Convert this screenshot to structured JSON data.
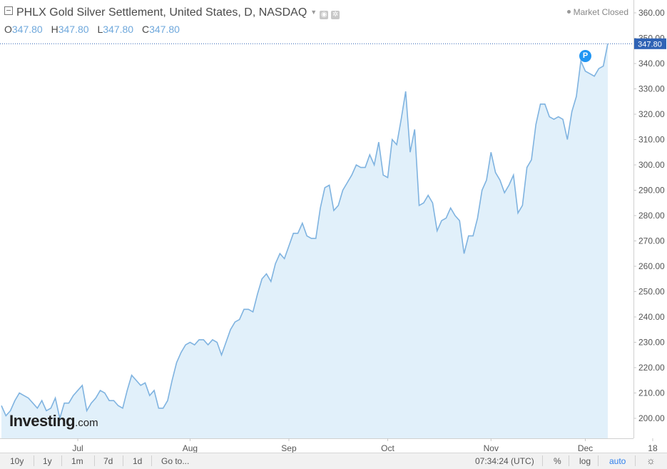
{
  "header": {
    "title": "PHLX Gold Silver Settlement, United States, D, NASDAQ",
    "ohlc": [
      {
        "key": "O",
        "value": "347.80"
      },
      {
        "key": "H",
        "value": "347.80"
      },
      {
        "key": "L",
        "value": "347.80"
      },
      {
        "key": "C",
        "value": "347.80"
      }
    ],
    "market_status": "Market Closed"
  },
  "current_price_label": "347.80",
  "event_marker": "P",
  "logo": {
    "main": "Investing",
    "suffix": ".com"
  },
  "colors": {
    "line": "#7fb3e0",
    "fill": "#e1f0fa",
    "price_tag": "#2f63b5",
    "marker": "#2196f3"
  },
  "toolbar": {
    "ranges": [
      "10y",
      "1y",
      "1m",
      "7d",
      "1d"
    ],
    "goto": "Go to...",
    "time": "07:34:24 (UTC)",
    "percent": "%",
    "log": "log",
    "auto": "auto",
    "settings_icon": "gear-icon"
  },
  "chart_data": {
    "type": "area",
    "title": "PHLX Gold Silver Settlement",
    "y_ticks": [
      200,
      210,
      220,
      230,
      240,
      250,
      260,
      270,
      280,
      290,
      300,
      310,
      320,
      330,
      340,
      350,
      360
    ],
    "y_tick_labels": [
      "200.00",
      "210.00",
      "220.00",
      "230.00",
      "240.00",
      "250.00",
      "260.00",
      "270.00",
      "280.00",
      "290.00",
      "300.00",
      "310.00",
      "320.00",
      "330.00",
      "340.00",
      "350.00",
      "360.00"
    ],
    "ylim": [
      192,
      362
    ],
    "x_ticks": [
      {
        "label": "Jul",
        "index": 17
      },
      {
        "label": "Aug",
        "index": 42
      },
      {
        "label": "Sep",
        "index": 64
      },
      {
        "label": "Oct",
        "index": 86
      },
      {
        "label": "Nov",
        "index": 109
      },
      {
        "label": "Dec",
        "index": 130
      },
      {
        "label": "18",
        "index": 145
      }
    ],
    "values": [
      205,
      201,
      203,
      207,
      210,
      209,
      208,
      206,
      204,
      207,
      203,
      204,
      208,
      200,
      206,
      206,
      209,
      211,
      213,
      203,
      206,
      208,
      211,
      210,
      207,
      207,
      205,
      204,
      211,
      217,
      215,
      213,
      214,
      209,
      211,
      204,
      204,
      207,
      215,
      222,
      226,
      229,
      230,
      229,
      231,
      231,
      229,
      231,
      230,
      225,
      230,
      235,
      238,
      239,
      243,
      243,
      242,
      249,
      255,
      257,
      254,
      261,
      265,
      263,
      268,
      273,
      273,
      277,
      272,
      271,
      271,
      283,
      291,
      292,
      282,
      284,
      290,
      293,
      296,
      300,
      299,
      299,
      304,
      300,
      309,
      296,
      295,
      310,
      308,
      318,
      329,
      305,
      314,
      284,
      285,
      288,
      285,
      274,
      278,
      279,
      283,
      280,
      278,
      265,
      272,
      272,
      279,
      290,
      294,
      305,
      297,
      294,
      289,
      292,
      296,
      281,
      284,
      299,
      302,
      316,
      324,
      324,
      319,
      318,
      319,
      318,
      310,
      321,
      327,
      341,
      337,
      336,
      335,
      338,
      339,
      347.8
    ]
  }
}
